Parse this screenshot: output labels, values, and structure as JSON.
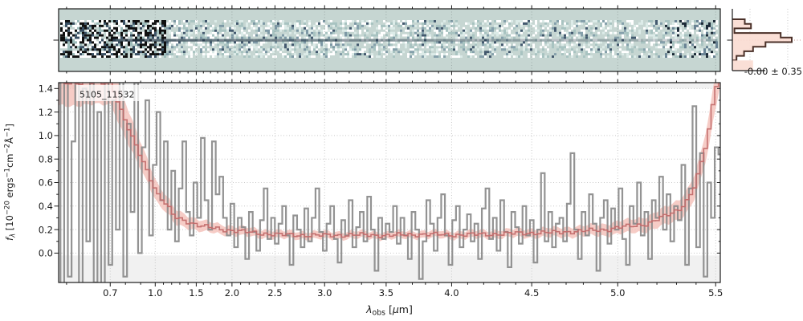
{
  "chart_data": {
    "type": "line",
    "label": "5105_11532",
    "xlabel_segments": [
      {
        "t": "λ",
        "s": "i"
      },
      {
        "t": "obs",
        "s": "sub"
      },
      {
        "t": " [",
        "s": "n"
      },
      {
        "t": "μ",
        "s": "i"
      },
      {
        "t": "m]",
        "s": "n"
      }
    ],
    "ylabel_segments": [
      {
        "t": "f",
        "s": "i"
      },
      {
        "t": "λ",
        "s": "subi"
      },
      {
        "t": " [10",
        "s": "n"
      },
      {
        "t": "−20",
        "s": "sup"
      },
      {
        "t": " ergs",
        "s": "n"
      },
      {
        "t": "−1",
        "s": "sup"
      },
      {
        "t": "cm",
        "s": "n"
      },
      {
        "t": "−2",
        "s": "sup"
      },
      {
        "t": "Å",
        "s": "n"
      },
      {
        "t": "−1",
        "s": "sup"
      },
      {
        "t": "]",
        "s": "n"
      }
    ],
    "ylim": [
      -0.25,
      1.45
    ],
    "y_ticks": {
      "labels": [
        "0.0",
        "0.2",
        "0.4",
        "0.6",
        "0.8",
        "1.0",
        "1.2",
        "1.4"
      ],
      "values": [
        0.0,
        0.2,
        0.4,
        0.6,
        0.8,
        1.0,
        1.2,
        1.4
      ]
    },
    "x_ticks": {
      "labels": [
        "0.7",
        "1.0",
        "1.5",
        "2.0",
        "2.5",
        "3.0",
        "3.5",
        "4.0",
        "4.5",
        "5.0",
        "5.5"
      ],
      "fractions": [
        0.078,
        0.146,
        0.208,
        0.262,
        0.327,
        0.402,
        0.495,
        0.594,
        0.715,
        0.845,
        0.993
      ],
      "values": [
        0.7,
        1.0,
        1.5,
        2.0,
        2.5,
        3.0,
        3.5,
        4.0,
        4.5,
        5.0,
        5.5
      ]
    },
    "x_map": [
      [
        0.58,
        0.0
      ],
      [
        0.6,
        0.012
      ],
      [
        0.7,
        0.078
      ],
      [
        0.8,
        0.101
      ],
      [
        0.9,
        0.124
      ],
      [
        1.0,
        0.146
      ],
      [
        1.5,
        0.208
      ],
      [
        2.0,
        0.262
      ],
      [
        2.5,
        0.327
      ],
      [
        3.0,
        0.402
      ],
      [
        3.5,
        0.495
      ],
      [
        4.0,
        0.594
      ],
      [
        4.5,
        0.715
      ],
      [
        5.0,
        0.845
      ],
      [
        5.5,
        0.993
      ],
      [
        5.53,
        1.0
      ]
    ],
    "minor_step": 0.1,
    "minor_range": [
      0.6,
      5.5
    ],
    "colors": {
      "spectrum": "#8a8a8a",
      "model_line": "#c26b6b",
      "model_band": "#f4bfb8",
      "grid": "#c8c8c8",
      "spine": "#1a1a1a",
      "shade": "#f1f1f1",
      "panel2d_bg": "#c6d6d2",
      "hist_fill": "#f9dcd2",
      "hist_outline": "#4b3129",
      "hist_centerline": "#c59089",
      "label_text": "#2a2a2a"
    },
    "shaded_regions": [
      {
        "from": -0.25,
        "to": -0.02
      },
      {
        "from": 1.4,
        "to": 1.45
      }
    ],
    "spectrum": {
      "n": 180,
      "values": [
        1.45,
        -0.28,
        1.5,
        -0.2,
        0.95,
        1.5,
        -0.3,
        1.4,
        0.1,
        1.5,
        -0.25,
        1.2,
        -0.3,
        1.5,
        -0.1,
        1.3,
        0.2,
        1.5,
        -0.2,
        1.1,
        0.35,
        1.45,
        0.0,
        0.9,
        1.3,
        0.15,
        0.75,
        1.2,
        0.45,
        0.95,
        0.2,
        0.7,
        0.1,
        0.55,
        0.95,
        0.35,
        0.15,
        0.6,
        0.3,
        0.98,
        0.45,
        0.2,
        0.95,
        0.5,
        0.65,
        0.3,
        0.15,
        0.42,
        0.05,
        0.3,
        0.22,
        -0.05,
        0.35,
        0.18,
        0.02,
        0.28,
        0.55,
        0.12,
        0.3,
        0.08,
        0.25,
        0.4,
        0.15,
        -0.1,
        0.32,
        0.2,
        0.05,
        0.38,
        0.1,
        0.3,
        0.55,
        0.18,
        0.02,
        0.25,
        0.4,
        0.12,
        -0.08,
        0.28,
        0.15,
        0.45,
        0.05,
        0.22,
        0.35,
        0.1,
        0.48,
        0.2,
        -0.15,
        0.3,
        0.12,
        0.25,
        0.18,
        0.4,
        0.08,
        0.3,
        0.15,
        -0.05,
        0.35,
        0.2,
        -0.22,
        0.1,
        0.45,
        0.25,
        0.02,
        0.3,
        0.5,
        0.15,
        -0.1,
        0.28,
        0.4,
        0.05,
        0.2,
        0.33,
        0.1,
        0.25,
        -0.05,
        0.38,
        0.55,
        0.12,
        0.3,
        0.02,
        0.45,
        0.18,
        -0.12,
        0.35,
        0.22,
        0.08,
        0.4,
        0.15,
        0.28,
        -0.08,
        0.2,
        0.68,
        0.1,
        0.35,
        0.05,
        0.25,
        0.3,
        0.1,
        0.42,
        0.85,
        0.2,
        -0.05,
        0.35,
        0.15,
        0.5,
        0.25,
        -0.15,
        0.3,
        0.45,
        0.08,
        0.38,
        0.2,
        0.55,
        0.12,
        -0.1,
        0.4,
        0.25,
        0.6,
        0.15,
        0.35,
        -0.05,
        0.45,
        0.3,
        0.65,
        0.2,
        0.5,
        0.1,
        0.4,
        0.28,
        0.75,
        -0.1,
        0.55,
        1.25,
        0.05,
        0.85,
        -0.2,
        0.6,
        0.3,
        0.9,
        0.84
      ]
    },
    "model": {
      "anchors": [
        [
          0.0,
          1.45
        ],
        [
          0.08,
          1.45
        ],
        [
          0.093,
          1.24
        ],
        [
          0.11,
          1.0
        ],
        [
          0.133,
          0.72
        ],
        [
          0.15,
          0.5
        ],
        [
          0.165,
          0.4
        ],
        [
          0.175,
          0.31
        ],
        [
          0.2,
          0.26
        ],
        [
          0.215,
          0.23
        ],
        [
          0.25,
          0.2
        ],
        [
          0.275,
          0.185
        ],
        [
          0.3,
          0.17
        ],
        [
          0.34,
          0.155
        ],
        [
          0.4,
          0.15
        ],
        [
          0.45,
          0.155
        ],
        [
          0.5,
          0.15
        ],
        [
          0.55,
          0.16
        ],
        [
          0.6,
          0.155
        ],
        [
          0.65,
          0.16
        ],
        [
          0.7,
          0.17
        ],
        [
          0.75,
          0.175
        ],
        [
          0.8,
          0.19
        ],
        [
          0.83,
          0.2
        ],
        [
          0.846,
          0.22
        ],
        [
          0.87,
          0.23
        ],
        [
          0.89,
          0.25
        ],
        [
          0.91,
          0.3
        ],
        [
          0.925,
          0.33
        ],
        [
          0.94,
          0.38
        ],
        [
          0.95,
          0.45
        ],
        [
          0.96,
          0.55
        ],
        [
          0.97,
          0.72
        ],
        [
          0.98,
          0.95
        ],
        [
          0.985,
          1.1
        ],
        [
          0.99,
          1.3
        ],
        [
          0.995,
          1.45
        ],
        [
          1.0,
          1.6
        ]
      ],
      "band_halfwidth": [
        [
          0.0,
          0.2
        ],
        [
          0.085,
          0.18
        ],
        [
          0.12,
          0.12
        ],
        [
          0.15,
          0.08
        ],
        [
          0.2,
          0.05
        ],
        [
          0.25,
          0.04
        ],
        [
          0.35,
          0.032
        ],
        [
          0.55,
          0.03
        ],
        [
          0.7,
          0.035
        ],
        [
          0.8,
          0.045
        ],
        [
          0.88,
          0.06
        ],
        [
          0.93,
          0.08
        ],
        [
          0.97,
          0.11
        ],
        [
          1.0,
          0.16
        ]
      ]
    },
    "histogram": {
      "stat_label": "-0.00 ± 0.35",
      "bins_right_fraction": [
        0.18,
        0.27,
        0.03,
        0.7,
        0.86,
        0.48,
        0.3,
        0.17,
        0.06
      ],
      "tail_fraction": 0.3,
      "gridline_fractions": [
        0.256,
        0.802
      ]
    },
    "panel2d": {
      "noise_palette_dark": [
        "#101010",
        "#394f63",
        "#43596e",
        "#1c2b38"
      ],
      "noise_palette_light": [
        "#ffffff",
        "#dcebe8",
        "#a8c3c1",
        "#9dbcba"
      ],
      "trace_color": "#263848"
    }
  }
}
